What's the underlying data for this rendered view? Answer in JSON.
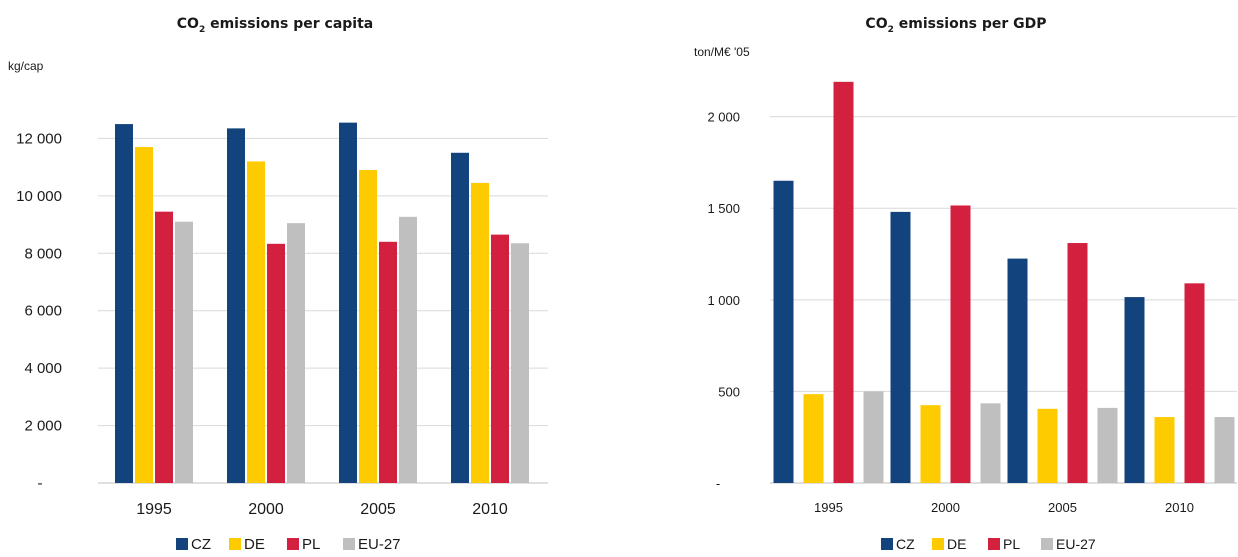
{
  "chart_data": [
    {
      "type": "bar",
      "title_main": "CO",
      "title_sub": "2",
      "title_rest": " emissions per capita",
      "ylabel": "kg/cap",
      "xlabel": "",
      "categories": [
        "1995",
        "2000",
        "2005",
        "2010"
      ],
      "ylim": [
        0,
        14000
      ],
      "yticks": [
        0,
        2000,
        4000,
        6000,
        8000,
        10000,
        12000
      ],
      "ytick_labels": [
        "-",
        "2 000",
        "4 000",
        "6 000",
        "8 000",
        "10 000",
        "12 000"
      ],
      "grid": true,
      "legend_position": "bottom",
      "series": [
        {
          "name": "CZ",
          "color": "#13437c",
          "values": [
            12500,
            12350,
            12550,
            11500
          ]
        },
        {
          "name": "DE",
          "color": "#fecb00",
          "values": [
            11700,
            11200,
            10900,
            10450
          ]
        },
        {
          "name": "PL",
          "color": "#d3203f",
          "values": [
            9450,
            8330,
            8400,
            8650
          ]
        },
        {
          "name": "EU-27",
          "color": "#bfbfbf",
          "values": [
            9100,
            9050,
            9270,
            8350
          ]
        }
      ]
    },
    {
      "type": "bar",
      "title_main": "CO",
      "title_sub": "2",
      "title_rest": " emissions per GDP",
      "ylabel": "ton/M€ '05",
      "xlabel": "",
      "categories": [
        "1995",
        "2000",
        "2005",
        "2010"
      ],
      "ylim": [
        0,
        2200
      ],
      "yticks": [
        0,
        500,
        1000,
        1500,
        2000
      ],
      "ytick_labels": [
        "-",
        "500",
        "1 000",
        "1 500",
        "2 000"
      ],
      "grid": true,
      "legend_position": "bottom",
      "series": [
        {
          "name": "CZ",
          "color": "#13437c",
          "values": [
            1650,
            1480,
            1225,
            1015
          ]
        },
        {
          "name": "DE",
          "color": "#fecb00",
          "values": [
            485,
            425,
            405,
            360
          ]
        },
        {
          "name": "PL",
          "color": "#d3203f",
          "values": [
            2190,
            1515,
            1310,
            1090
          ]
        },
        {
          "name": "EU-27",
          "color": "#bfbfbf",
          "values": [
            500,
            435,
            410,
            360
          ]
        }
      ]
    }
  ]
}
